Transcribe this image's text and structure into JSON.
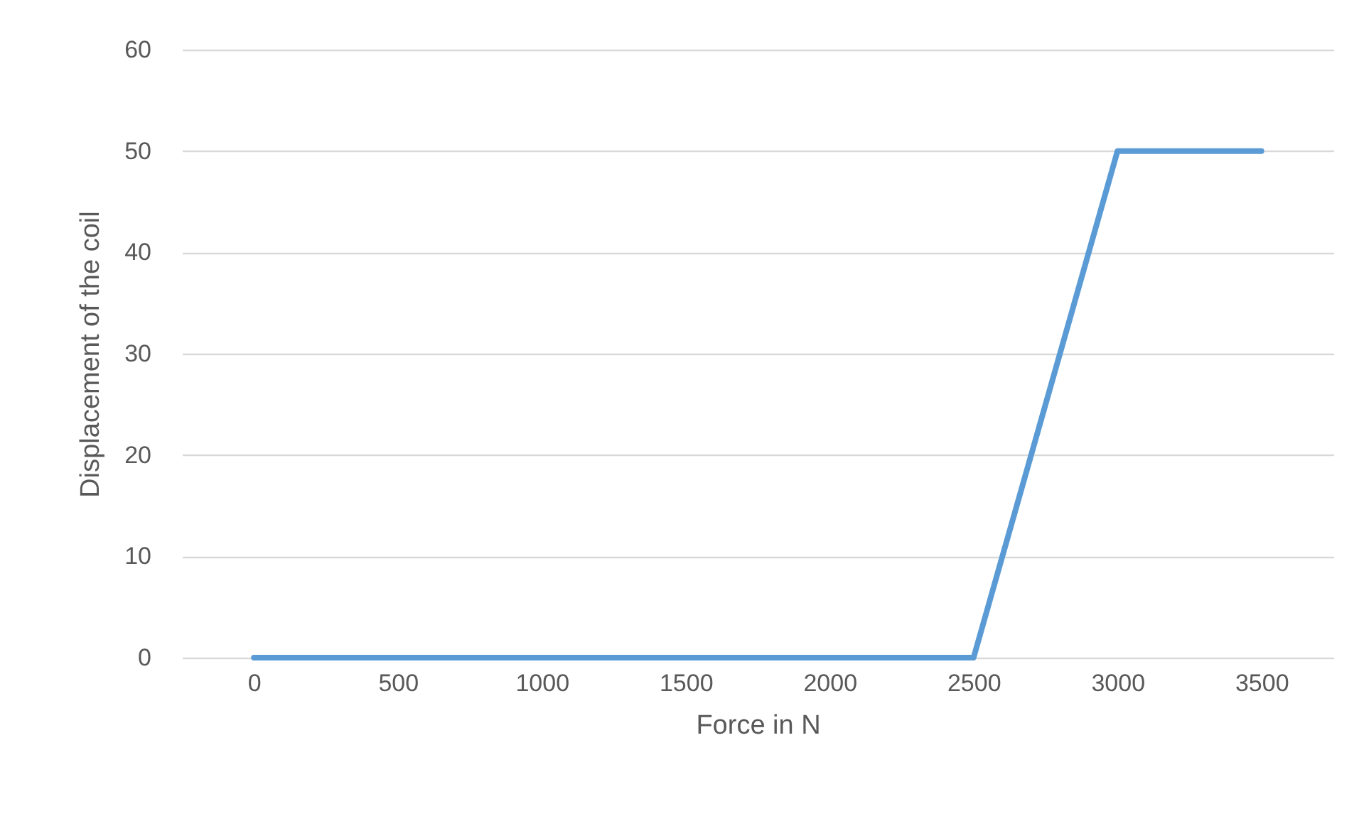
{
  "chart_data": {
    "type": "line",
    "xlabel": "Force in N",
    "ylabel": "Displacement of the coil",
    "categories": [
      "0",
      "500",
      "1000",
      "1500",
      "2000",
      "2500",
      "3000",
      "3500"
    ],
    "series": [
      {
        "color": "#5b9bd5",
        "values": [
          0,
          0,
          0,
          0,
          0,
          0,
          50,
          50
        ]
      }
    ],
    "ylim": [
      0,
      60
    ],
    "yticks": [
      0,
      10,
      20,
      30,
      40,
      50,
      60
    ],
    "grid": "y",
    "marker": "none",
    "line_style": "solid"
  }
}
